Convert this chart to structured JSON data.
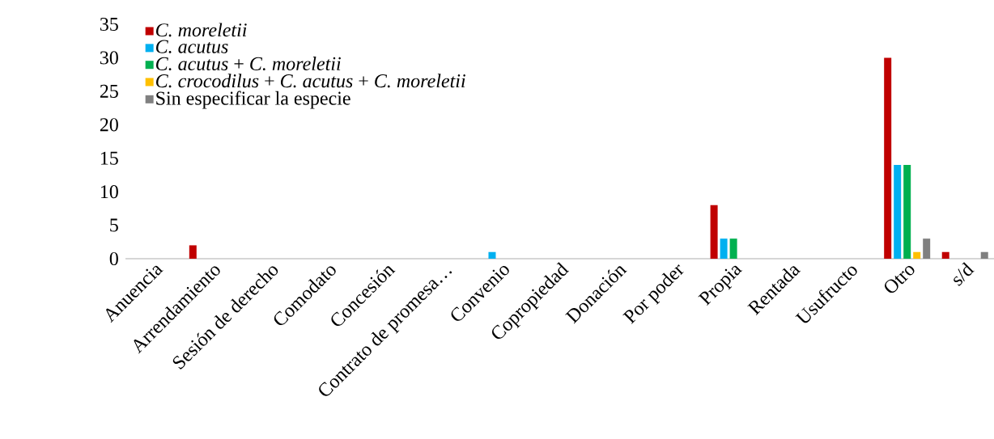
{
  "chart_data": {
    "type": "bar",
    "categories": [
      "Anuencia",
      "Arrendamiento",
      "Sesión de derecho",
      "Comodato",
      "Concesión",
      "Contrato de promesa…",
      "Convenio",
      "Copropiedad",
      "Donación",
      "Por poder",
      "Propia",
      "Rentada",
      "Usufructo",
      "Otro",
      "s/d"
    ],
    "series": [
      {
        "name": "*C. moreletii*",
        "color": "#c00000",
        "values": [
          0,
          2,
          0,
          0,
          0,
          0,
          0,
          0,
          0,
          0,
          8,
          0,
          0,
          30,
          1
        ]
      },
      {
        "name": "*C. acutus*",
        "color": "#00b0f0",
        "values": [
          0,
          0,
          0,
          0,
          0,
          0,
          1,
          0,
          0,
          0,
          3,
          0,
          0,
          14,
          0
        ]
      },
      {
        "name": "*C. acutus* + *C. moreletii*",
        "color": "#00b050",
        "values": [
          0,
          0,
          0,
          0,
          0,
          0,
          0,
          0,
          0,
          0,
          3,
          0,
          0,
          14,
          0
        ]
      },
      {
        "name": "*C. crocodilus* + *C. acutus* + *C. moreletii*",
        "color": "#ffc000",
        "values": [
          0,
          0,
          0,
          0,
          0,
          0,
          0,
          0,
          0,
          0,
          0,
          0,
          0,
          1,
          0
        ]
      },
      {
        "name": "Sin especificar la especie",
        "color": "#808080",
        "values": [
          0,
          0,
          0,
          0,
          0,
          0,
          0,
          0,
          0,
          0,
          0,
          0,
          0,
          3,
          1
        ]
      }
    ],
    "ylim": [
      0,
      35
    ],
    "yticks": [
      0,
      5,
      10,
      15,
      20,
      25,
      30,
      35
    ],
    "legend": "top left"
  }
}
